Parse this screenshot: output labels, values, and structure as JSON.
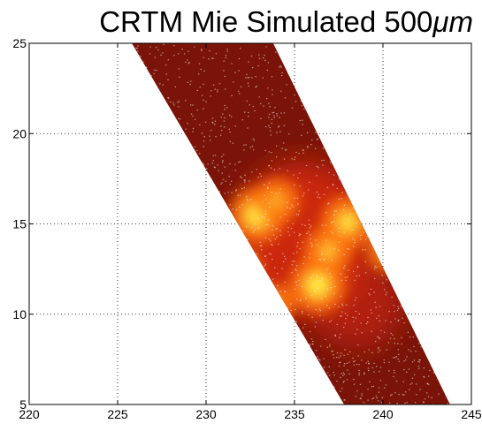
{
  "chart_data": {
    "type": "heatmap",
    "title": "CRTM Mie Simulated 500",
    "title_unit": "μm",
    "xlabel": "",
    "ylabel": "",
    "xlim": [
      220,
      245
    ],
    "ylim": [
      5,
      25
    ],
    "x_ticks": [
      "220",
      "225",
      "230",
      "235",
      "240",
      "245"
    ],
    "y_ticks": [
      "5",
      "10",
      "15",
      "20",
      "25"
    ],
    "grid": true,
    "grid_style": "dotted",
    "swath": {
      "left_edge": [
        [
          225.8,
          25
        ],
        [
          237.8,
          5
        ]
      ],
      "right_edge": [
        [
          233.8,
          25
        ],
        [
          243.8,
          5
        ]
      ]
    },
    "hotspots": [
      {
        "x": 232.9,
        "y": 15.5,
        "intensity": 1.0
      },
      {
        "x": 236.3,
        "y": 11.6,
        "intensity": 1.0
      },
      {
        "x": 238.0,
        "y": 15.1,
        "intensity": 0.9
      },
      {
        "x": 236.9,
        "y": 13.5,
        "intensity": 0.75
      },
      {
        "x": 234.0,
        "y": 16.3,
        "intensity": 0.65
      },
      {
        "x": 240.3,
        "y": 13.5,
        "intensity": 0.6
      },
      {
        "x": 233.8,
        "y": 10.5,
        "intensity": 0.55
      },
      {
        "x": 232.0,
        "y": 12.5,
        "intensity": 0.5
      }
    ],
    "colors": {
      "low": "#7a1408",
      "mid": "#d42a10",
      "high": "#ff7a10",
      "peak": "#ffe840"
    }
  }
}
